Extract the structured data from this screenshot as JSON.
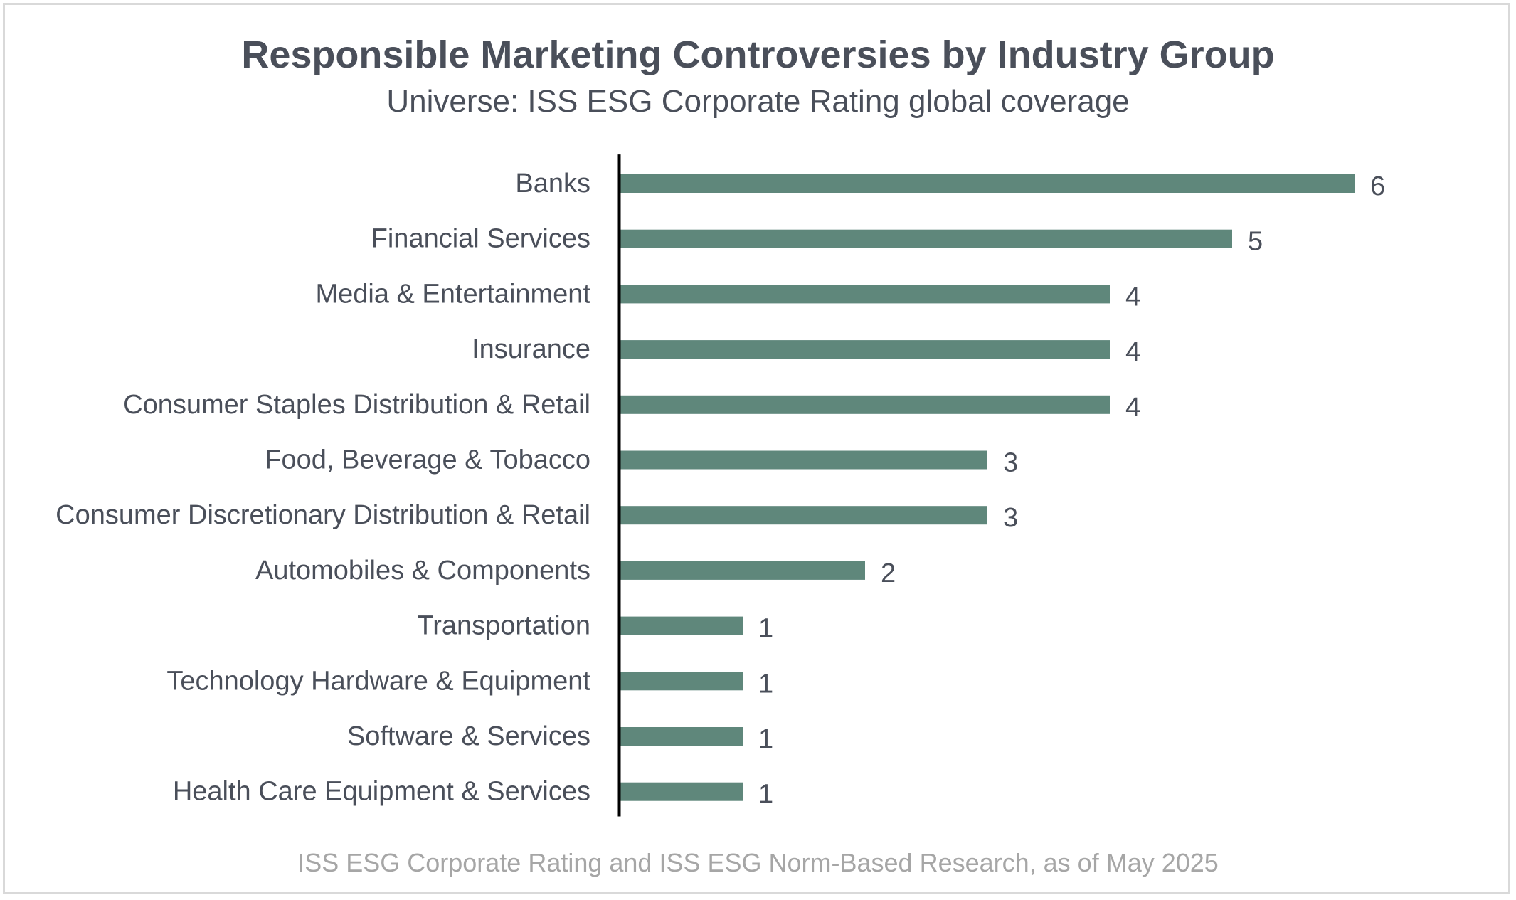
{
  "colors": {
    "bar": "#5f877b",
    "axis": "#000000",
    "text": "#4a4f5a",
    "source_text": "#a6a6a6"
  },
  "chart_data": {
    "type": "bar",
    "orientation": "horizontal",
    "title": "Responsible Marketing Controversies by Industry Group",
    "subtitle": "Universe: ISS ESG Corporate Rating global coverage",
    "source": "ISS ESG Corporate Rating and ISS ESG Norm-Based Research, as of May 2025",
    "categories": [
      "Banks",
      "Financial Services",
      "Media & Entertainment",
      "Insurance",
      "Consumer Staples Distribution & Retail",
      "Food, Beverage & Tobacco",
      "Consumer Discretionary Distribution & Retail",
      "Automobiles & Components",
      "Transportation",
      "Technology Hardware & Equipment",
      "Software & Services",
      "Health Care Equipment & Services"
    ],
    "values": [
      6,
      5,
      4,
      4,
      4,
      3,
      3,
      2,
      1,
      1,
      1,
      1
    ],
    "xlim": [
      0,
      6
    ],
    "grid": false,
    "legend": "none"
  }
}
